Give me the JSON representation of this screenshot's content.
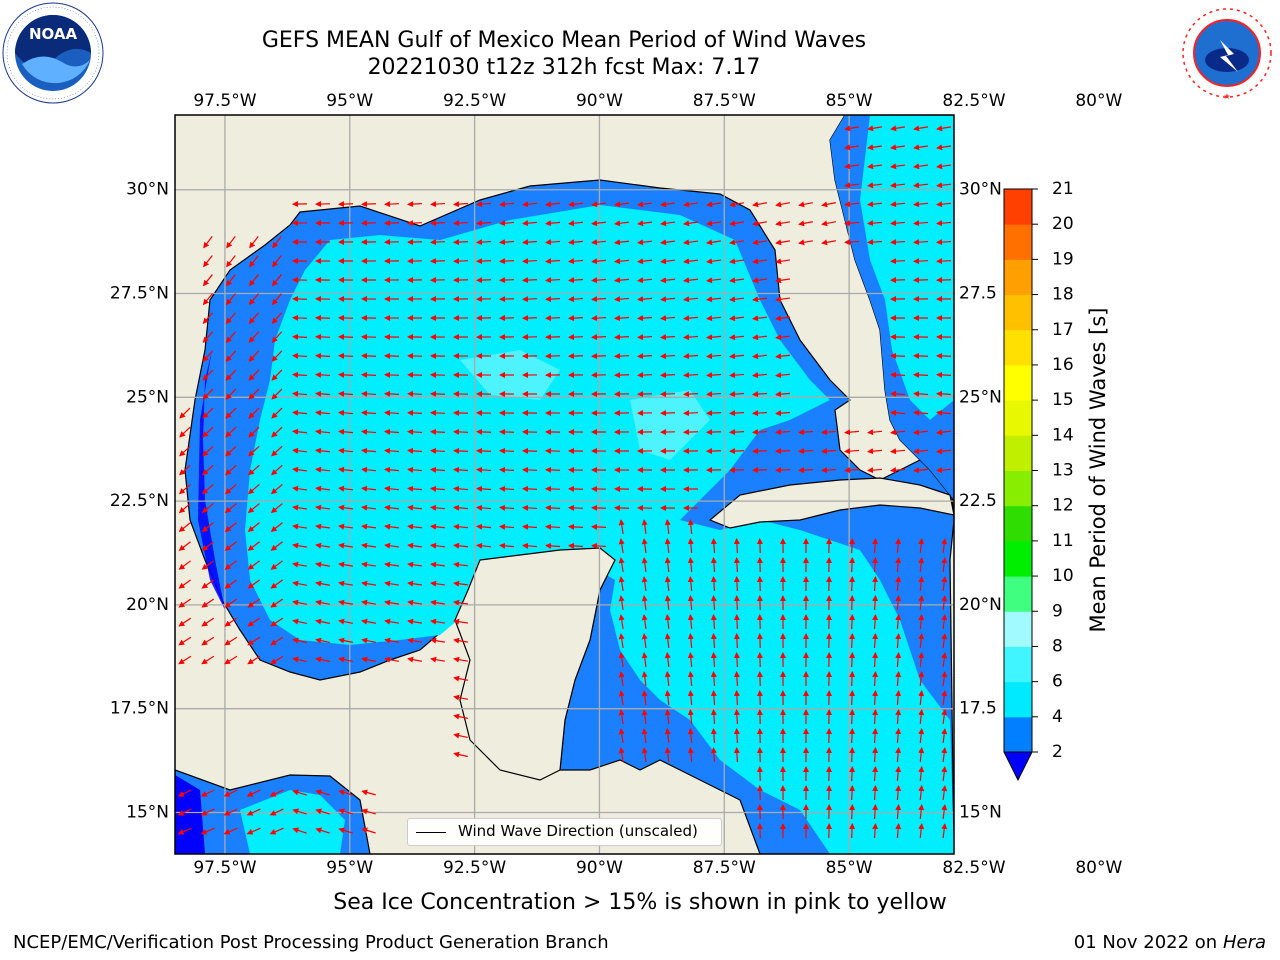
{
  "header": {
    "title_line1": "GEFS MEAN Gulf of Mexico Mean Period of Wind Waves",
    "title_line2": "20221030 t12z 312h fcst   Max: 7.17"
  },
  "logos": {
    "left": {
      "icon": "noaa-logo",
      "text": "NOAA"
    },
    "right": {
      "icon": "national-weather-service-logo",
      "text": "NATIONAL WEATHER SERVICE"
    }
  },
  "map": {
    "projection": "PlateCarree",
    "extent_lon": [
      -98.5,
      -82.9
    ],
    "extent_lat": [
      14.0,
      31.8
    ],
    "top_lon_labels": [
      "97.5°W",
      "95°W",
      "92.5°W",
      "90°W",
      "87.5°W",
      "85°W",
      "82.5°W",
      "80°W"
    ],
    "bottom_lon_labels": [
      "97.5°W",
      "95°W",
      "92.5°W",
      "90°W",
      "87.5°W",
      "85°W",
      "82.5°W",
      "80°W"
    ],
    "left_lat_labels": [
      "30°N",
      "27.5°N",
      "25°N",
      "22.5°N",
      "20°N",
      "17.5°N",
      "15°N"
    ],
    "right_lat_labels": [
      "30°N",
      "27.5",
      "25°N",
      "22.5",
      "20°N",
      "17.5",
      "15°N"
    ],
    "land_color": "#efedde",
    "grid": true,
    "vector_color": "#ff0000",
    "field": "Mean Period of Wind Waves",
    "max_value": 7.17
  },
  "legend": {
    "label": "Wind Wave Direction (unscaled)"
  },
  "colorbar": {
    "label": "Mean Period of Wind Waves [s]",
    "ticks": [
      "2",
      "4",
      "6",
      "8",
      "9",
      "10",
      "11",
      "12",
      "13",
      "14",
      "15",
      "16",
      "17",
      "18",
      "19",
      "20",
      "21"
    ],
    "colors": [
      "#0080ff",
      "#00eaff",
      "#40f5ff",
      "#a0faff",
      "#40ff80",
      "#00ee00",
      "#30dd00",
      "#88ee00",
      "#c0f000",
      "#e8f800",
      "#ffff00",
      "#ffe000",
      "#ffc000",
      "#ffa000",
      "#ff7000",
      "#ff4000",
      "#ff0000"
    ],
    "extend": "min",
    "under_color": "#0000ff"
  },
  "footer": {
    "note": "Sea Ice Concentration > 15% is shown in pink to yellow",
    "left": "NCEP/EMC/Verification Post Processing Product Generation Branch",
    "right_date": "01 Nov 2022 on",
    "right_machine": "Hera"
  }
}
